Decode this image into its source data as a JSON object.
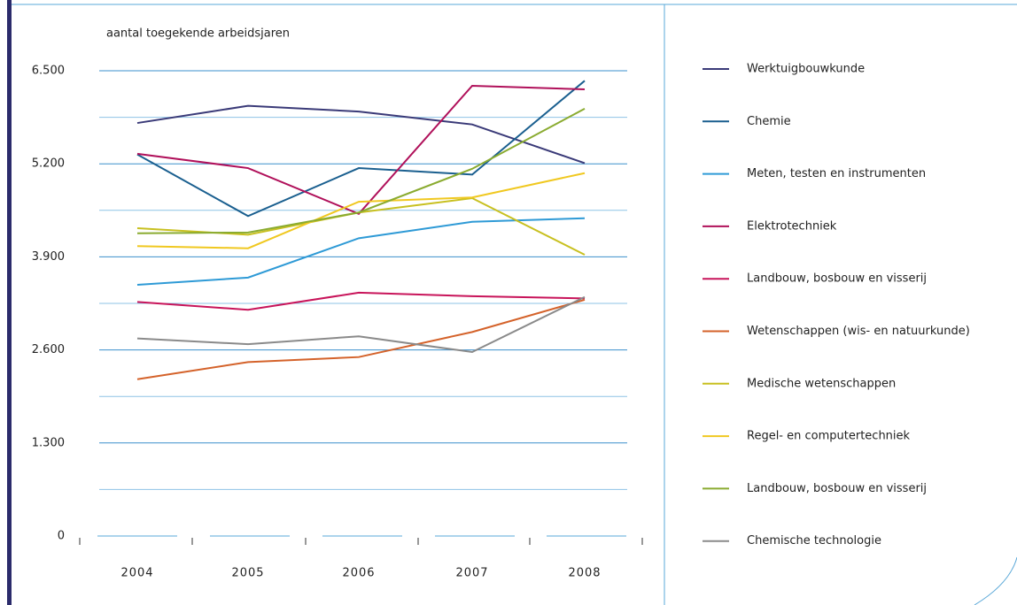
{
  "chart_data": {
    "type": "line",
    "ylabel": "aantal toegekende arbeidsjaren",
    "categories": [
      "2004",
      "2005",
      "2006",
      "2007",
      "2008"
    ],
    "ylim": [
      0,
      6500
    ],
    "yticks": [
      {
        "value": 0,
        "label": "0"
      },
      {
        "value": 1300,
        "label": "1.300"
      },
      {
        "value": 2600,
        "label": "2.600"
      },
      {
        "value": 3900,
        "label": "3.900"
      },
      {
        "value": 5200,
        "label": "5.200"
      },
      {
        "value": 6500,
        "label": "6.500"
      }
    ],
    "grid": true,
    "minor_grid": true,
    "legend": "right",
    "series": [
      {
        "name": "Werktuigbouwkunde",
        "color": "#3a3a78",
        "values": [
          5770,
          6010,
          5930,
          5750,
          5210
        ]
      },
      {
        "name": "Chemie",
        "color": "#1a5f8f",
        "values": [
          5330,
          4470,
          5140,
          5050,
          6360
        ]
      },
      {
        "name": "Meten, testen en instrumenten",
        "color": "#2e9ad6",
        "values": [
          3510,
          3610,
          4160,
          4390,
          4440
        ]
      },
      {
        "name": "Elektrotechniek",
        "color": "#b0105a",
        "values": [
          5340,
          5140,
          4500,
          6290,
          6240
        ]
      },
      {
        "name": "Landbouw, bosbouw en visserij",
        "color": "#c8145a",
        "values": [
          3270,
          3160,
          3400,
          3350,
          3320
        ]
      },
      {
        "name": "Wetenschappen (wis- en natuurkunde)",
        "color": "#d4622a",
        "values": [
          2190,
          2430,
          2500,
          2850,
          3300
        ]
      },
      {
        "name": "Medische wetenschappen",
        "color": "#c8c020",
        "values": [
          4300,
          4210,
          4520,
          4720,
          3930
        ]
      },
      {
        "name": "Regel- en computertechniek",
        "color": "#f0c820",
        "values": [
          4050,
          4020,
          4670,
          4730,
          5070
        ]
      },
      {
        "name": "Landbouw, bosbouw en visserij",
        "color": "#8aab30",
        "values": [
          4230,
          4240,
          4520,
          5130,
          5970
        ]
      },
      {
        "name": "Chemische technologie",
        "color": "#8a8a8a",
        "values": [
          2760,
          2680,
          2790,
          2570,
          3340
        ]
      }
    ]
  }
}
